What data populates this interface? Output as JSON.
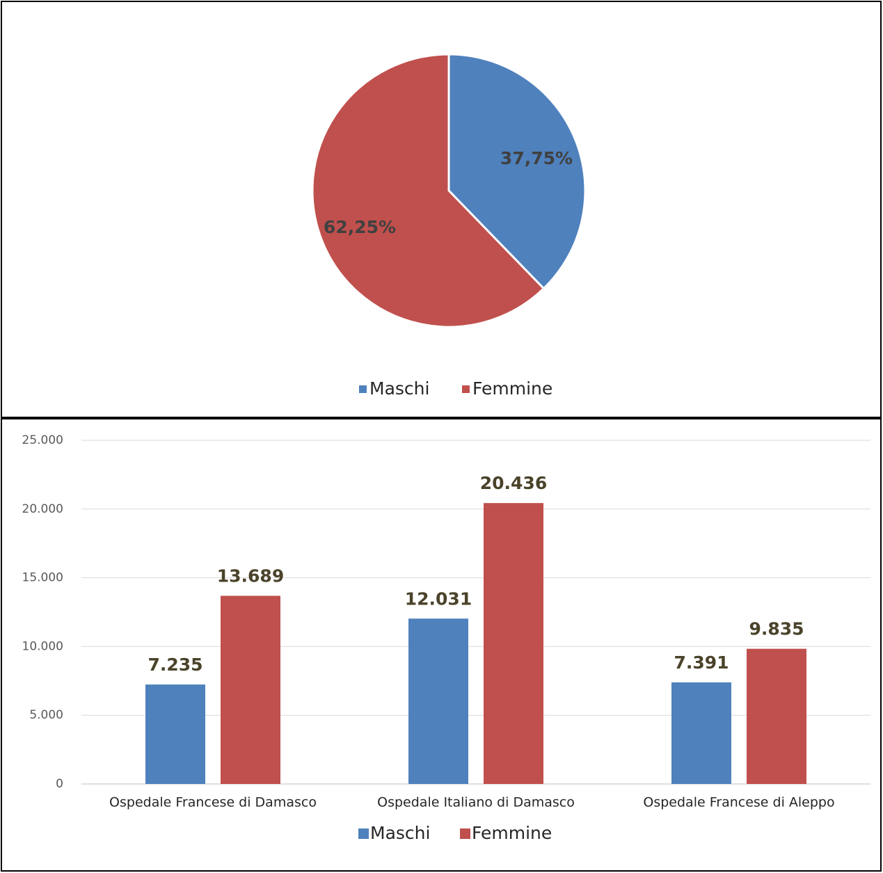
{
  "chart_data": [
    {
      "type": "pie",
      "slices": [
        {
          "label": "Maschi",
          "value": 37.75,
          "text": "37,75%",
          "color": "#4f81bd"
        },
        {
          "label": "Femmine",
          "value": 62.25,
          "text": "62,25%",
          "color": "#c0504d"
        }
      ],
      "legend": {
        "position": "bottom",
        "entries": [
          "Maschi",
          "Femmine"
        ]
      }
    },
    {
      "type": "bar",
      "categories": [
        "Ospedale Francese di Damasco",
        "Ospedale Italiano di Damasco",
        "Ospedale Francese di Aleppo"
      ],
      "series": [
        {
          "name": "Maschi",
          "color": "#4f81bd",
          "values": [
            7235,
            12031,
            7391
          ],
          "labels": [
            "7.235",
            "12.031",
            "7.391"
          ]
        },
        {
          "name": "Femmine",
          "color": "#c0504d",
          "values": [
            13689,
            20436,
            9835
          ],
          "labels": [
            "13.689",
            "20.436",
            "9.835"
          ]
        }
      ],
      "ylim": [
        0,
        25000
      ],
      "yticks": [
        0,
        5000,
        10000,
        15000,
        20000,
        25000
      ],
      "ytick_labels": [
        "0",
        "5.000",
        "10.000",
        "15.000",
        "20.000",
        "25.000"
      ],
      "grid": true,
      "legend": {
        "position": "bottom",
        "entries": [
          "Maschi",
          "Femmine"
        ]
      },
      "label_color": "#4a432a"
    }
  ]
}
